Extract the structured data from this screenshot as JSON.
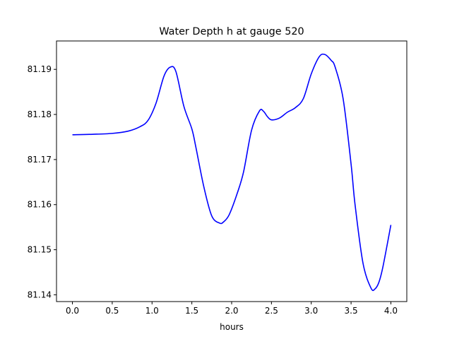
{
  "chart_data": {
    "type": "line",
    "title": "Water Depth h at gauge 520",
    "xlabel": "hours",
    "ylabel": "",
    "xlim": [
      -0.2,
      4.2
    ],
    "ylim": [
      81.1385,
      81.1963
    ],
    "xticks": [
      0.0,
      0.5,
      1.0,
      1.5,
      2.0,
      2.5,
      3.0,
      3.5,
      4.0
    ],
    "xtick_labels": [
      "0.0",
      "0.5",
      "1.0",
      "1.5",
      "2.0",
      "2.5",
      "3.0",
      "3.5",
      "4.0"
    ],
    "yticks": [
      81.14,
      81.15,
      81.16,
      81.17,
      81.18,
      81.19
    ],
    "ytick_labels": [
      "81.14",
      "81.15",
      "81.16",
      "81.17",
      "81.18",
      "81.19"
    ],
    "grid": false,
    "series": [
      {
        "color": "#0000ff",
        "x": [
          0.0,
          0.25,
          0.5,
          0.7,
          0.85,
          0.95,
          1.05,
          1.15,
          1.23,
          1.3,
          1.4,
          1.5,
          1.55,
          1.65,
          1.75,
          1.85,
          1.9,
          1.97,
          2.07,
          2.15,
          2.25,
          2.35,
          2.4,
          2.45,
          2.5,
          2.6,
          2.7,
          2.8,
          2.9,
          3.0,
          3.1,
          3.17,
          3.25,
          3.3,
          3.4,
          3.5,
          3.55,
          3.65,
          3.75,
          3.8,
          3.85,
          3.9,
          4.0
        ],
        "y": [
          81.1755,
          81.1756,
          81.1758,
          81.1763,
          81.1773,
          81.1787,
          81.1825,
          81.1885,
          81.1905,
          81.1895,
          81.1818,
          81.1768,
          81.1728,
          81.164,
          81.1575,
          81.1559,
          81.1562,
          81.1578,
          81.1625,
          81.1673,
          81.1765,
          81.1808,
          81.1807,
          81.1795,
          81.1788,
          81.1792,
          81.1805,
          81.1815,
          81.1835,
          81.189,
          81.1928,
          81.1933,
          81.192,
          81.1905,
          81.1835,
          81.169,
          81.16,
          81.147,
          81.1415,
          81.1413,
          81.1428,
          81.1462,
          81.1555
        ]
      }
    ]
  }
}
